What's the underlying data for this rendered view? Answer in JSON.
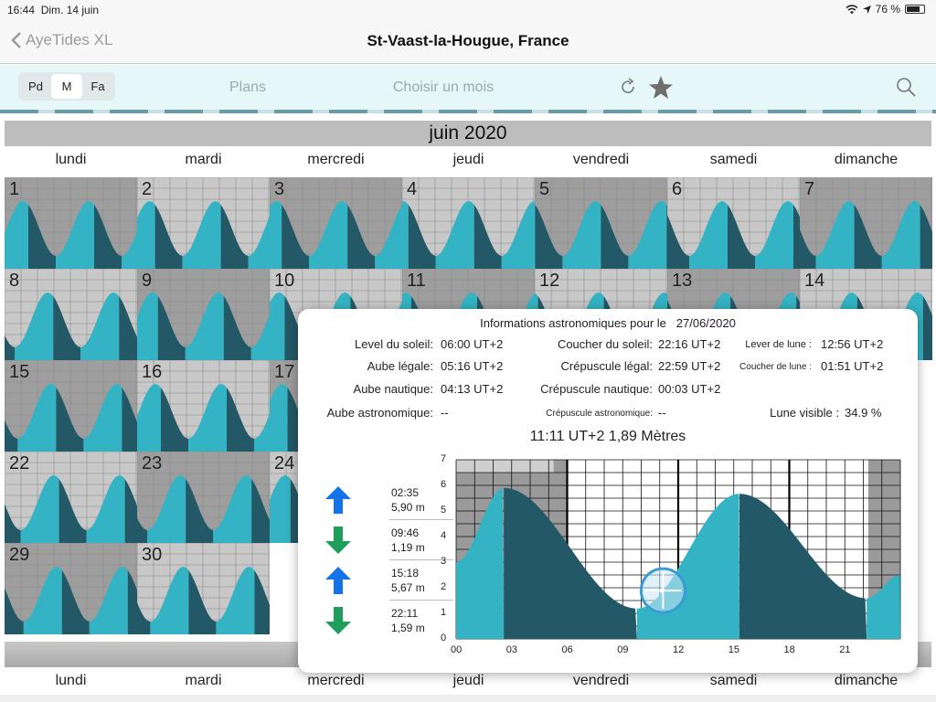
{
  "status": {
    "time": "16:44",
    "date": "Dim. 14 juin",
    "battery": "76 %",
    "battery_level": 0.76
  },
  "nav": {
    "back_label": "AyeTides XL",
    "title": "St-Vaast-la-Hougue, France"
  },
  "toolbar": {
    "seg": [
      "Pd",
      "M",
      "Fa"
    ],
    "selected": "M",
    "plans": "Plans",
    "choose_month": "Choisir un mois"
  },
  "calendar": {
    "month_title": "juin 2020",
    "weekdays": [
      "lundi",
      "mardi",
      "mercredi",
      "jeudi",
      "vendredi",
      "samedi",
      "dimanche"
    ],
    "days": [
      "1",
      "2",
      "3",
      "4",
      "5",
      "6",
      "7",
      "8",
      "9",
      "10",
      "11",
      "12",
      "13",
      "14",
      "15",
      "16",
      "17",
      "22",
      "23",
      "24",
      "29",
      "30"
    ],
    "selected_day": "14"
  },
  "astro": {
    "title": "Informations astronomiques pour le",
    "date": "27/06/2020",
    "sunrise_label": "Level du soleil:",
    "sunrise": "06:00 UT+2",
    "sunset_label": "Coucher du soleil:",
    "sunset": "22:16 UT+2",
    "moonrise_label": "Lever de lune :",
    "moonrise": "12:56 UT+2",
    "civil_dawn_label": "Aube légale:",
    "civil_dawn": "05:16 UT+2",
    "civil_dusk_label": "Crépuscule légal:",
    "civil_dusk": "22:59 UT+2",
    "moonset_label": "Coucher de lune :",
    "moonset": "01:51 UT+2",
    "nautical_dawn_label": "Aube nautique:",
    "nautical_dawn": "04:13 UT+2",
    "nautical_dusk_label": "Crépuscule nautique:",
    "nautical_dusk": "00:03 UT+2",
    "astro_dawn_label": "Aube astronomique:",
    "astro_dawn": "--",
    "astro_dusk_label": "Crépuscule astronomique:",
    "astro_dusk": "--",
    "moon_visible_label": "Lune visible :",
    "moon_visible": "34.9 %",
    "tide_now": "11:11 UT+2 1,89 Mètres"
  },
  "tides": [
    {
      "type": "high",
      "time": "02:35",
      "height": "5,90 m"
    },
    {
      "type": "low",
      "time": "09:46",
      "height": "1,19 m"
    },
    {
      "type": "high",
      "time": "15:18",
      "height": "5,67 m"
    },
    {
      "type": "low",
      "time": "22:11",
      "height": "1,59 m"
    }
  ],
  "chart_data": {
    "type": "area",
    "x": [
      0,
      2.58,
      9.77,
      15.3,
      22.18,
      24
    ],
    "y": [
      3.0,
      5.9,
      1.19,
      5.67,
      1.59,
      2.5
    ],
    "xlim": [
      0,
      24
    ],
    "ylim": [
      0,
      7
    ],
    "x_ticks": [
      "00",
      "03",
      "06",
      "09",
      "12",
      "15",
      "18",
      "21"
    ],
    "y_ticks": [
      "0",
      "1",
      "2",
      "3",
      "4",
      "5",
      "6",
      "7"
    ],
    "marker_time": 11.18,
    "marker_height": 1.89,
    "colors": {
      "rising": "#34b3c4",
      "falling": "#235866",
      "night": "#9a9a9a"
    }
  }
}
